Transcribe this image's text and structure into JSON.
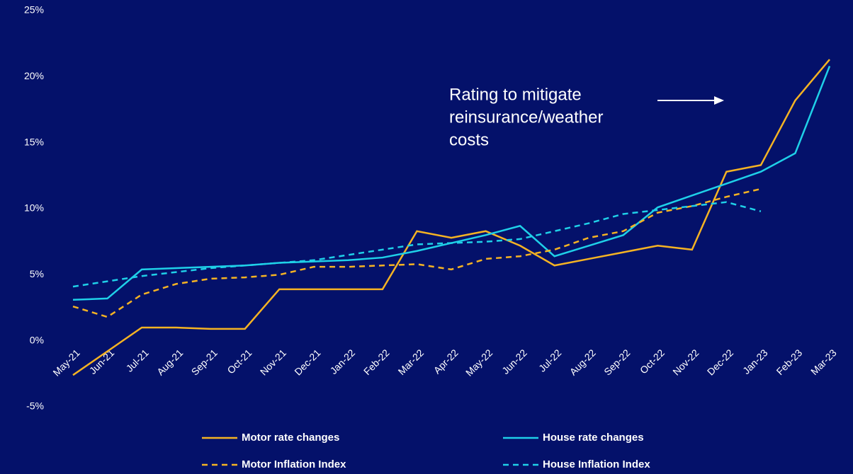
{
  "chart_data": {
    "type": "line",
    "annotation": [
      "Rating to mitigate",
      "reinsurance/weather",
      "costs"
    ],
    "categories": [
      "May-21",
      "Jun-21",
      "Jul-21",
      "Aug-21",
      "Sep-21",
      "Oct-21",
      "Nov-21",
      "Dec-21",
      "Jan-22",
      "Feb-22",
      "Mar-22",
      "Apr-22",
      "May-22",
      "Jun-22",
      "Jul-22",
      "Aug-22",
      "Sep-22",
      "Oct-22",
      "Nov-22",
      "Dec-22",
      "Jan-23",
      "Feb-23",
      "Mar-23"
    ],
    "series": [
      {
        "name": "Motor rate changes",
        "color": "#f5b323",
        "dashed": false,
        "values": [
          -2.6,
          -0.8,
          1.0,
          1.0,
          0.9,
          0.9,
          3.9,
          3.9,
          3.9,
          3.9,
          8.3,
          7.8,
          8.3,
          7.2,
          5.7,
          6.2,
          6.7,
          7.2,
          6.9,
          12.8,
          13.3,
          18.2,
          21.3
        ]
      },
      {
        "name": "House rate changes",
        "color": "#1fd0e8",
        "dashed": false,
        "values": [
          3.1,
          3.2,
          5.4,
          5.5,
          5.6,
          5.7,
          5.9,
          6.0,
          6.1,
          6.3,
          6.8,
          7.4,
          8.0,
          8.7,
          6.4,
          7.2,
          8.0,
          10.1,
          11.0,
          11.9,
          12.8,
          14.2,
          20.8
        ]
      },
      {
        "name": "Motor Inflation Index",
        "color": "#f5b323",
        "dashed": true,
        "values": [
          2.6,
          1.8,
          3.5,
          4.3,
          4.7,
          4.8,
          5.0,
          5.6,
          5.6,
          5.7,
          5.8,
          5.4,
          6.2,
          6.4,
          6.9,
          7.8,
          8.3,
          9.7,
          10.2,
          10.9,
          11.5,
          null,
          null
        ]
      },
      {
        "name": "House Inflation Index",
        "color": "#1fd0e8",
        "dashed": true,
        "values": [
          4.1,
          4.5,
          4.9,
          5.2,
          5.5,
          5.7,
          5.9,
          6.1,
          6.5,
          6.9,
          7.3,
          7.4,
          7.5,
          7.7,
          8.3,
          8.9,
          9.6,
          9.9,
          10.2,
          10.5,
          9.8,
          null,
          null
        ]
      }
    ],
    "ylim": [
      -5,
      25
    ],
    "yticks": [
      {
        "value": -5,
        "label": "-5%"
      },
      {
        "value": 0,
        "label": "0%"
      },
      {
        "value": 5,
        "label": "5%"
      },
      {
        "value": 10,
        "label": "10%"
      },
      {
        "value": 15,
        "label": "15%"
      },
      {
        "value": 20,
        "label": "20%"
      },
      {
        "value": 25,
        "label": "25%"
      }
    ],
    "grid": false
  }
}
